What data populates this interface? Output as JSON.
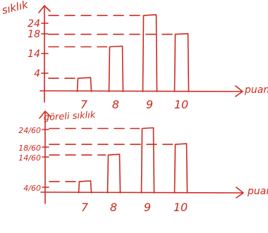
{
  "chart_data": [
    {
      "type": "bar",
      "ylabel": "sıklık",
      "xlabel": "puan",
      "categories": [
        "7",
        "8",
        "9",
        "10"
      ],
      "values": [
        4,
        14,
        24,
        18
      ],
      "yticks": [
        "4",
        "14",
        "18",
        "24"
      ],
      "ylim": [
        0,
        26
      ],
      "grid": "dashed guide lines from tick marks to bar tops",
      "legend": "none",
      "color": "#cc2a1e"
    },
    {
      "type": "bar",
      "ylabel": "göreli sıklık",
      "xlabel": "puan",
      "categories": [
        "7",
        "8",
        "9",
        "10"
      ],
      "values": [
        0.0667,
        0.2333,
        0.4,
        0.3
      ],
      "yticks": [
        "4/60",
        "14/60",
        "18/60",
        "24/60"
      ],
      "ylim": [
        0,
        0.4333
      ],
      "grid": "dashed guide lines from tick marks to bar tops",
      "legend": "none",
      "color": "#cc2a1e"
    }
  ]
}
